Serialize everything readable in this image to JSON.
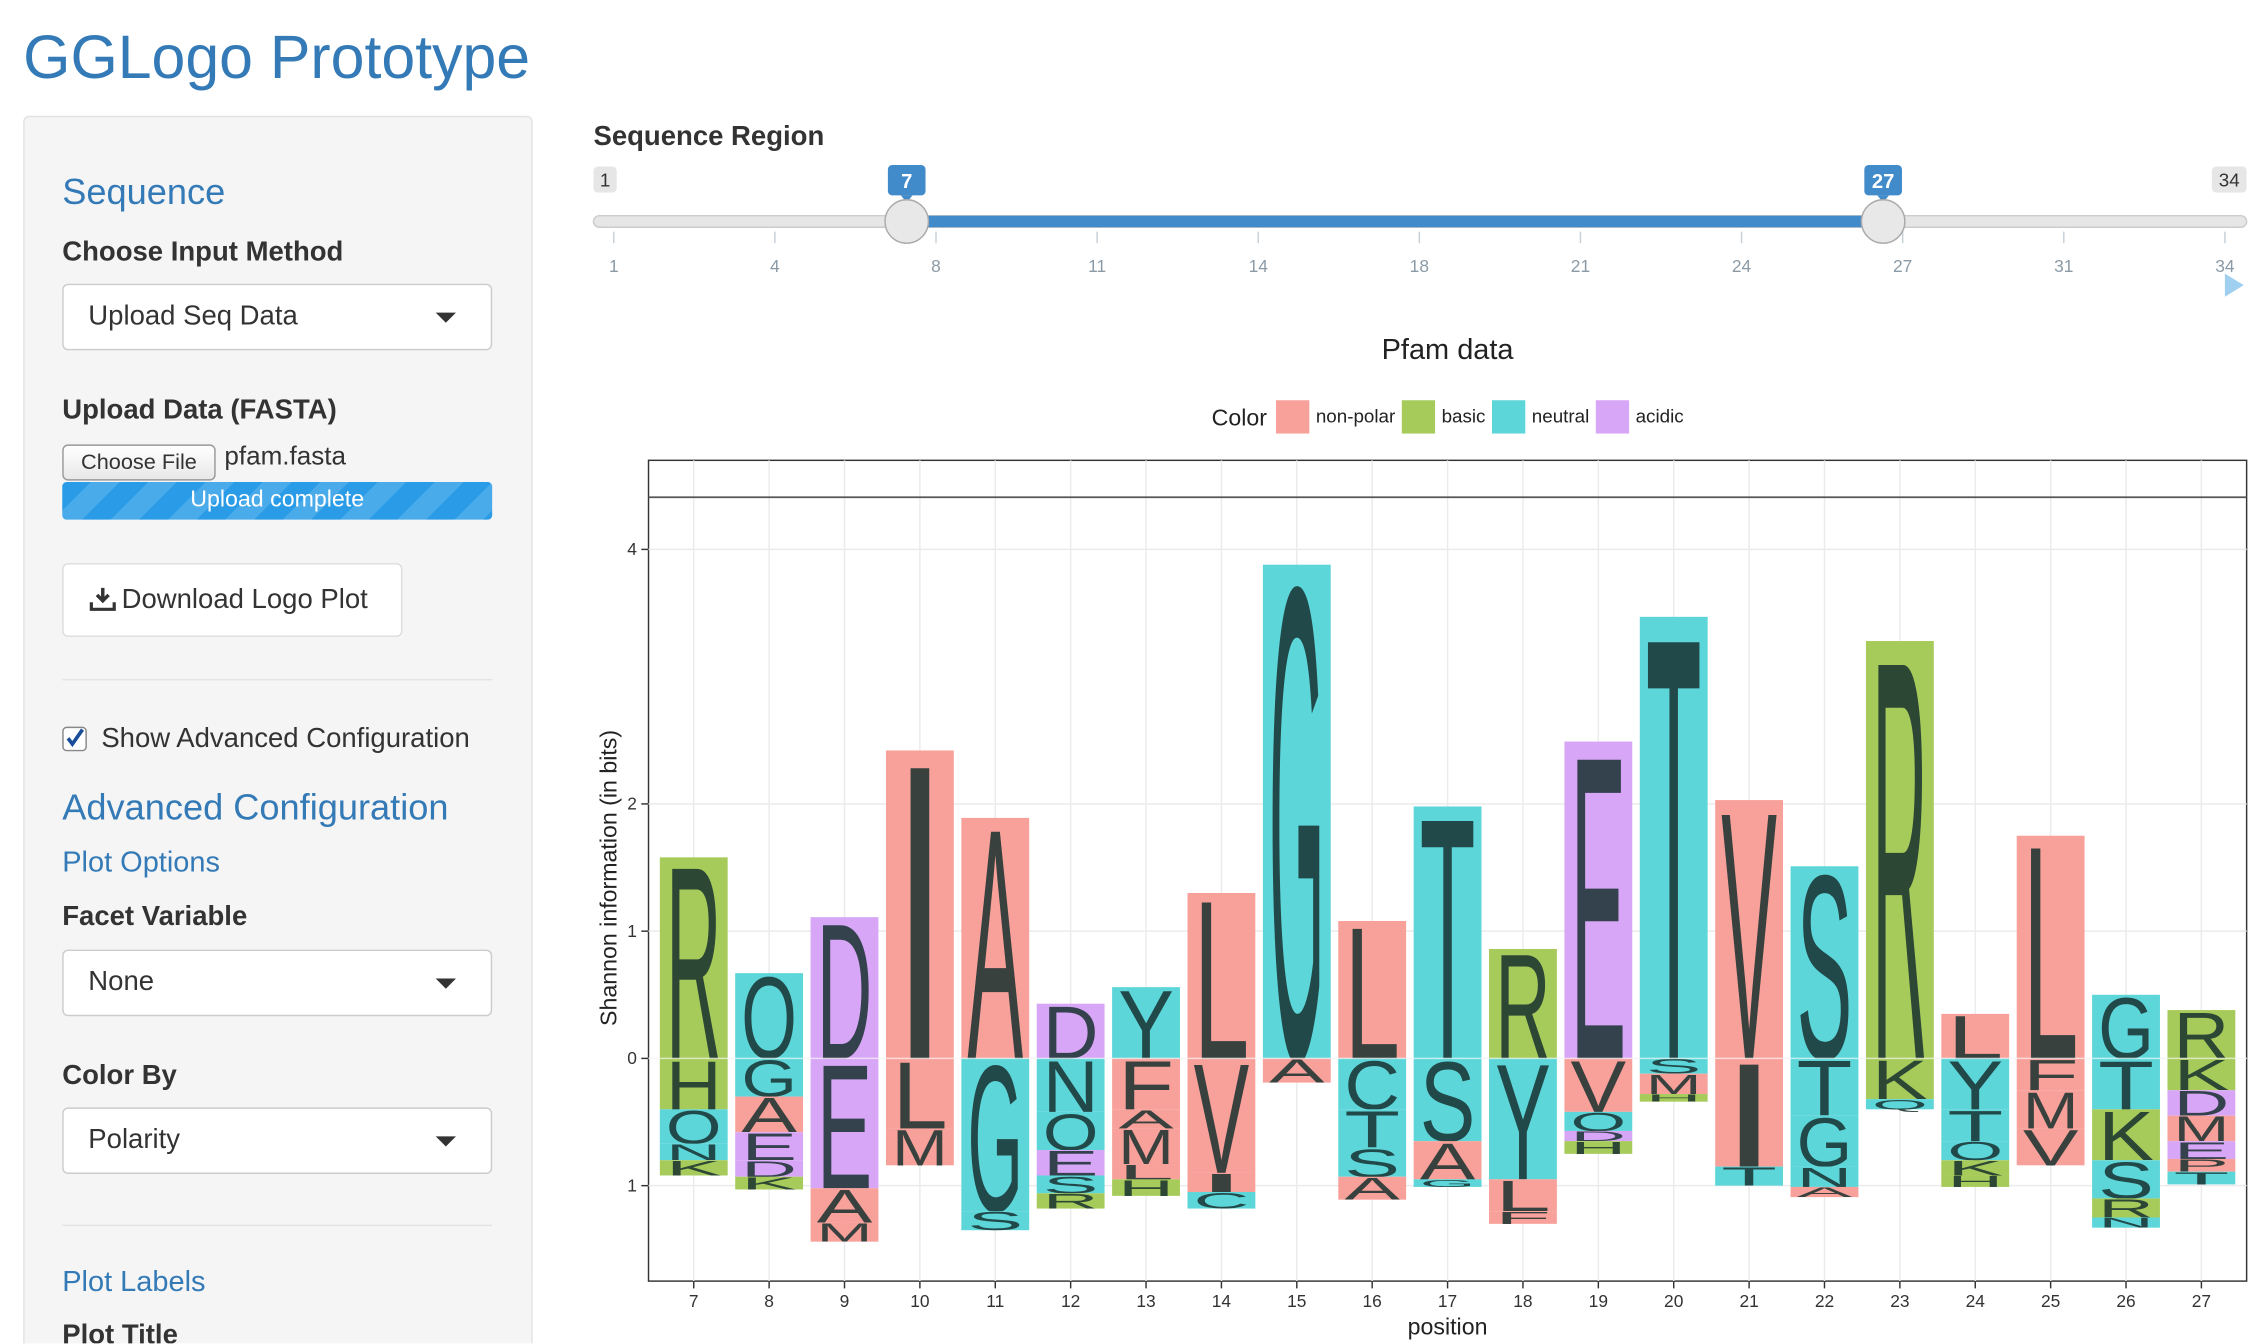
{
  "header": {
    "title": "GGLogo Prototype"
  },
  "sidebar": {
    "sequence_heading": "Sequence",
    "input_method_label": "Choose Input Method",
    "input_method_value": "Upload Seq Data",
    "upload_label": "Upload Data (FASTA)",
    "file_button": "Choose File",
    "file_name": "pfam.fasta",
    "upload_status": "Upload complete",
    "download_button": "Download Logo Plot",
    "advanced_checkbox": "Show Advanced Configuration",
    "advanced_heading": "Advanced Configuration",
    "plot_options_heading": "Plot Options",
    "facet_label": "Facet Variable",
    "facet_value": "None",
    "color_by_label": "Color By",
    "color_by_value": "Polarity",
    "plot_labels_heading": "Plot Labels",
    "plot_title_label": "Plot Title"
  },
  "slider": {
    "label": "Sequence Region",
    "min": 1,
    "max": 34,
    "from": 7,
    "to": 27,
    "ticks": [
      1,
      {
        "value": 4.3,
        "label": "4"
      },
      {
        "value": 7.6,
        "label": "8"
      },
      {
        "value": 10.9,
        "label": "11"
      },
      {
        "value": 14.2,
        "label": "14"
      },
      {
        "value": 17.5,
        "label": "18"
      },
      {
        "value": 20.8,
        "label": "21"
      },
      {
        "value": 24.1,
        "label": "24"
      },
      {
        "value": 27.4,
        "label": "27"
      },
      {
        "value": 30.7,
        "label": "31"
      },
      34
    ]
  },
  "chart_data": {
    "type": "logo",
    "title": "Pfam data",
    "x_label": "position",
    "y_label": "Shannon information (in bits)",
    "legend": {
      "title": "Color",
      "position": "top"
    },
    "groups": [
      {
        "name": "non-polar",
        "color": "#f8a19a"
      },
      {
        "name": "basic",
        "color": "#a7cb5b"
      },
      {
        "name": "neutral",
        "color": "#5dd6d9"
      },
      {
        "name": "acidic",
        "color": "#d7a6f6"
      }
    ],
    "x": [
      7,
      8,
      9,
      10,
      11,
      12,
      13,
      14,
      15,
      16,
      17,
      18,
      19,
      20,
      21,
      22,
      23,
      24,
      25,
      26,
      27
    ],
    "xlim": [
      6.4,
      27.6
    ],
    "ylim": [
      -1.75,
      4.7
    ],
    "yticks": [
      {
        "value": -1,
        "label": "1"
      },
      0,
      1,
      2,
      4
    ],
    "hline": 4.41,
    "grid": true,
    "stacks": [
      {
        "above": [
          {
            "letter": "R",
            "group": "basic",
            "value": 1.58
          }
        ],
        "below": [
          {
            "letter": "H",
            "group": "basic",
            "value": -0.4
          },
          {
            "letter": "Q",
            "group": "neutral",
            "value": -0.27
          },
          {
            "letter": "N",
            "group": "neutral",
            "value": -0.13
          },
          {
            "letter": "K",
            "group": "basic",
            "value": -0.12
          }
        ]
      },
      {
        "above": [
          {
            "letter": "Q",
            "group": "neutral",
            "value": 0.67
          }
        ],
        "below": [
          {
            "letter": "G",
            "group": "neutral",
            "value": -0.3
          },
          {
            "letter": "A",
            "group": "non-polar",
            "value": -0.28
          },
          {
            "letter": "E",
            "group": "acidic",
            "value": -0.22
          },
          {
            "letter": "D",
            "group": "acidic",
            "value": -0.13
          },
          {
            "letter": "K",
            "group": "basic",
            "value": -0.1
          }
        ]
      },
      {
        "above": [
          {
            "letter": "D",
            "group": "acidic",
            "value": 1.11
          }
        ],
        "below": [
          {
            "letter": "E",
            "group": "acidic",
            "value": -1.02
          },
          {
            "letter": "A",
            "group": "non-polar",
            "value": -0.27
          },
          {
            "letter": "M",
            "group": "non-polar",
            "value": -0.15
          }
        ]
      },
      {
        "above": [
          {
            "letter": "I",
            "group": "non-polar",
            "value": 2.42
          }
        ],
        "below": [
          {
            "letter": "L",
            "group": "non-polar",
            "value": -0.55
          },
          {
            "letter": "M",
            "group": "non-polar",
            "value": -0.29
          }
        ]
      },
      {
        "above": [
          {
            "letter": "A",
            "group": "non-polar",
            "value": 1.89
          }
        ],
        "below": [
          {
            "letter": "G",
            "group": "neutral",
            "value": -1.2
          },
          {
            "letter": "S",
            "group": "neutral",
            "value": -0.15
          }
        ]
      },
      {
        "above": [
          {
            "letter": "D",
            "group": "acidic",
            "value": 0.43
          }
        ],
        "below": [
          {
            "letter": "N",
            "group": "neutral",
            "value": -0.42
          },
          {
            "letter": "Q",
            "group": "neutral",
            "value": -0.3
          },
          {
            "letter": "E",
            "group": "acidic",
            "value": -0.2
          },
          {
            "letter": "S",
            "group": "neutral",
            "value": -0.14
          },
          {
            "letter": "R",
            "group": "basic",
            "value": -0.12
          }
        ]
      },
      {
        "above": [
          {
            "letter": "Y",
            "group": "neutral",
            "value": 0.56
          }
        ],
        "below": [
          {
            "letter": "F",
            "group": "non-polar",
            "value": -0.4
          },
          {
            "letter": "A",
            "group": "non-polar",
            "value": -0.15
          },
          {
            "letter": "M",
            "group": "non-polar",
            "value": -0.28
          },
          {
            "letter": "L",
            "group": "non-polar",
            "value": -0.12
          },
          {
            "letter": "H",
            "group": "basic",
            "value": -0.13
          }
        ]
      },
      {
        "above": [
          {
            "letter": "L",
            "group": "non-polar",
            "value": 1.3
          }
        ],
        "below": [
          {
            "letter": "V",
            "group": "non-polar",
            "value": -0.9
          },
          {
            "letter": "I",
            "group": "non-polar",
            "value": -0.15
          },
          {
            "letter": "C",
            "group": "neutral",
            "value": -0.13
          }
        ]
      },
      {
        "above": [
          {
            "letter": "G",
            "group": "neutral",
            "value": 3.88
          }
        ],
        "below": [
          {
            "letter": "A",
            "group": "non-polar",
            "value": -0.19
          }
        ]
      },
      {
        "above": [
          {
            "letter": "L",
            "group": "non-polar",
            "value": 1.08
          }
        ],
        "below": [
          {
            "letter": "C",
            "group": "neutral",
            "value": -0.4
          },
          {
            "letter": "T",
            "group": "neutral",
            "value": -0.3
          },
          {
            "letter": "S",
            "group": "neutral",
            "value": -0.23
          },
          {
            "letter": "A",
            "group": "non-polar",
            "value": -0.18
          }
        ]
      },
      {
        "above": [
          {
            "letter": "T",
            "group": "neutral",
            "value": 1.98
          }
        ],
        "below": [
          {
            "letter": "S",
            "group": "neutral",
            "value": -0.65
          },
          {
            "letter": "A",
            "group": "non-polar",
            "value": -0.3
          },
          {
            "letter": "G",
            "group": "neutral",
            "value": -0.06
          }
        ]
      },
      {
        "above": [
          {
            "letter": "R",
            "group": "basic",
            "value": 0.86
          }
        ],
        "below": [
          {
            "letter": "Y",
            "group": "neutral",
            "value": -0.95
          },
          {
            "letter": "L",
            "group": "non-polar",
            "value": -0.25
          },
          {
            "letter": "F",
            "group": "non-polar",
            "value": -0.1
          }
        ]
      },
      {
        "above": [
          {
            "letter": "E",
            "group": "acidic",
            "value": 2.49
          }
        ],
        "below": [
          {
            "letter": "V",
            "group": "non-polar",
            "value": -0.42
          },
          {
            "letter": "Q",
            "group": "neutral",
            "value": -0.15
          },
          {
            "letter": "D",
            "group": "acidic",
            "value": -0.08
          },
          {
            "letter": "H",
            "group": "basic",
            "value": -0.1
          }
        ]
      },
      {
        "above": [
          {
            "letter": "T",
            "group": "neutral",
            "value": 3.47
          }
        ],
        "below": [
          {
            "letter": "S",
            "group": "neutral",
            "value": -0.12
          },
          {
            "letter": "M",
            "group": "non-polar",
            "value": -0.16
          },
          {
            "letter": "H",
            "group": "basic",
            "value": -0.06
          }
        ]
      },
      {
        "above": [
          {
            "letter": "V",
            "group": "non-polar",
            "value": 2.03
          }
        ],
        "below": [
          {
            "letter": "I",
            "group": "non-polar",
            "value": -0.85
          },
          {
            "letter": "T",
            "group": "neutral",
            "value": -0.15
          }
        ]
      },
      {
        "above": [
          {
            "letter": "S",
            "group": "neutral",
            "value": 1.51
          }
        ],
        "below": [
          {
            "letter": "T",
            "group": "neutral",
            "value": -0.45
          },
          {
            "letter": "G",
            "group": "neutral",
            "value": -0.4
          },
          {
            "letter": "N",
            "group": "neutral",
            "value": -0.16
          },
          {
            "letter": "A",
            "group": "non-polar",
            "value": -0.08
          }
        ]
      },
      {
        "above": [
          {
            "letter": "R",
            "group": "basic",
            "value": 3.28
          }
        ],
        "below": [
          {
            "letter": "K",
            "group": "basic",
            "value": -0.32
          },
          {
            "letter": "Q",
            "group": "neutral",
            "value": -0.08
          }
        ]
      },
      {
        "above": [
          {
            "letter": "L",
            "group": "non-polar",
            "value": 0.35
          }
        ],
        "below": [
          {
            "letter": "Y",
            "group": "neutral",
            "value": -0.4
          },
          {
            "letter": "T",
            "group": "neutral",
            "value": -0.25
          },
          {
            "letter": "Q",
            "group": "neutral",
            "value": -0.15
          },
          {
            "letter": "K",
            "group": "basic",
            "value": -0.12
          },
          {
            "letter": "H",
            "group": "basic",
            "value": -0.09
          }
        ]
      },
      {
        "above": [
          {
            "letter": "L",
            "group": "non-polar",
            "value": 1.75
          }
        ],
        "below": [
          {
            "letter": "F",
            "group": "non-polar",
            "value": -0.25
          },
          {
            "letter": "M",
            "group": "non-polar",
            "value": -0.3
          },
          {
            "letter": "V",
            "group": "non-polar",
            "value": -0.29
          }
        ]
      },
      {
        "above": [
          {
            "letter": "G",
            "group": "neutral",
            "value": 0.5
          }
        ],
        "below": [
          {
            "letter": "T",
            "group": "neutral",
            "value": -0.4
          },
          {
            "letter": "K",
            "group": "basic",
            "value": -0.4
          },
          {
            "letter": "S",
            "group": "neutral",
            "value": -0.3
          },
          {
            "letter": "R",
            "group": "basic",
            "value": -0.15
          },
          {
            "letter": "N",
            "group": "neutral",
            "value": -0.08
          }
        ]
      },
      {
        "above": [
          {
            "letter": "R",
            "group": "basic",
            "value": 0.38
          }
        ],
        "below": [
          {
            "letter": "K",
            "group": "basic",
            "value": -0.25
          },
          {
            "letter": "D",
            "group": "acidic",
            "value": -0.2
          },
          {
            "letter": "M",
            "group": "non-polar",
            "value": -0.2
          },
          {
            "letter": "E",
            "group": "acidic",
            "value": -0.14
          },
          {
            "letter": "P",
            "group": "non-polar",
            "value": -0.1
          },
          {
            "letter": "T",
            "group": "neutral",
            "value": -0.1
          }
        ]
      }
    ]
  }
}
